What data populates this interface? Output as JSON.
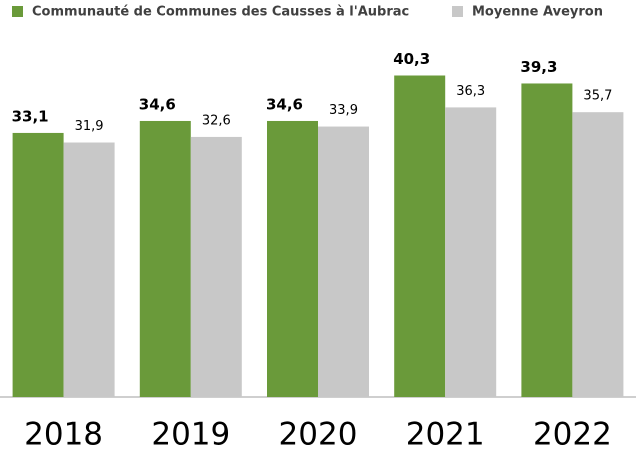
{
  "chart_data": {
    "type": "bar",
    "categories": [
      "2018",
      "2019",
      "2020",
      "2021",
      "2022"
    ],
    "series": [
      {
        "name": "Communauté de Communes des Causses à l'Aubrac",
        "color": "#6a9a3a",
        "values": [
          33.1,
          34.6,
          34.6,
          40.3,
          39.3
        ],
        "value_labels": [
          "33,1",
          "34,6",
          "34,6",
          "40,3",
          "39,3"
        ]
      },
      {
        "name": "Moyenne Aveyron",
        "color": "#c8c8c8",
        "values": [
          31.9,
          32.6,
          33.9,
          36.3,
          35.7
        ],
        "value_labels": [
          "31,9",
          "32,6",
          "33,9",
          "36,3",
          "35,7"
        ]
      }
    ],
    "ylim": [
      0,
      45
    ],
    "legend": "top"
  }
}
